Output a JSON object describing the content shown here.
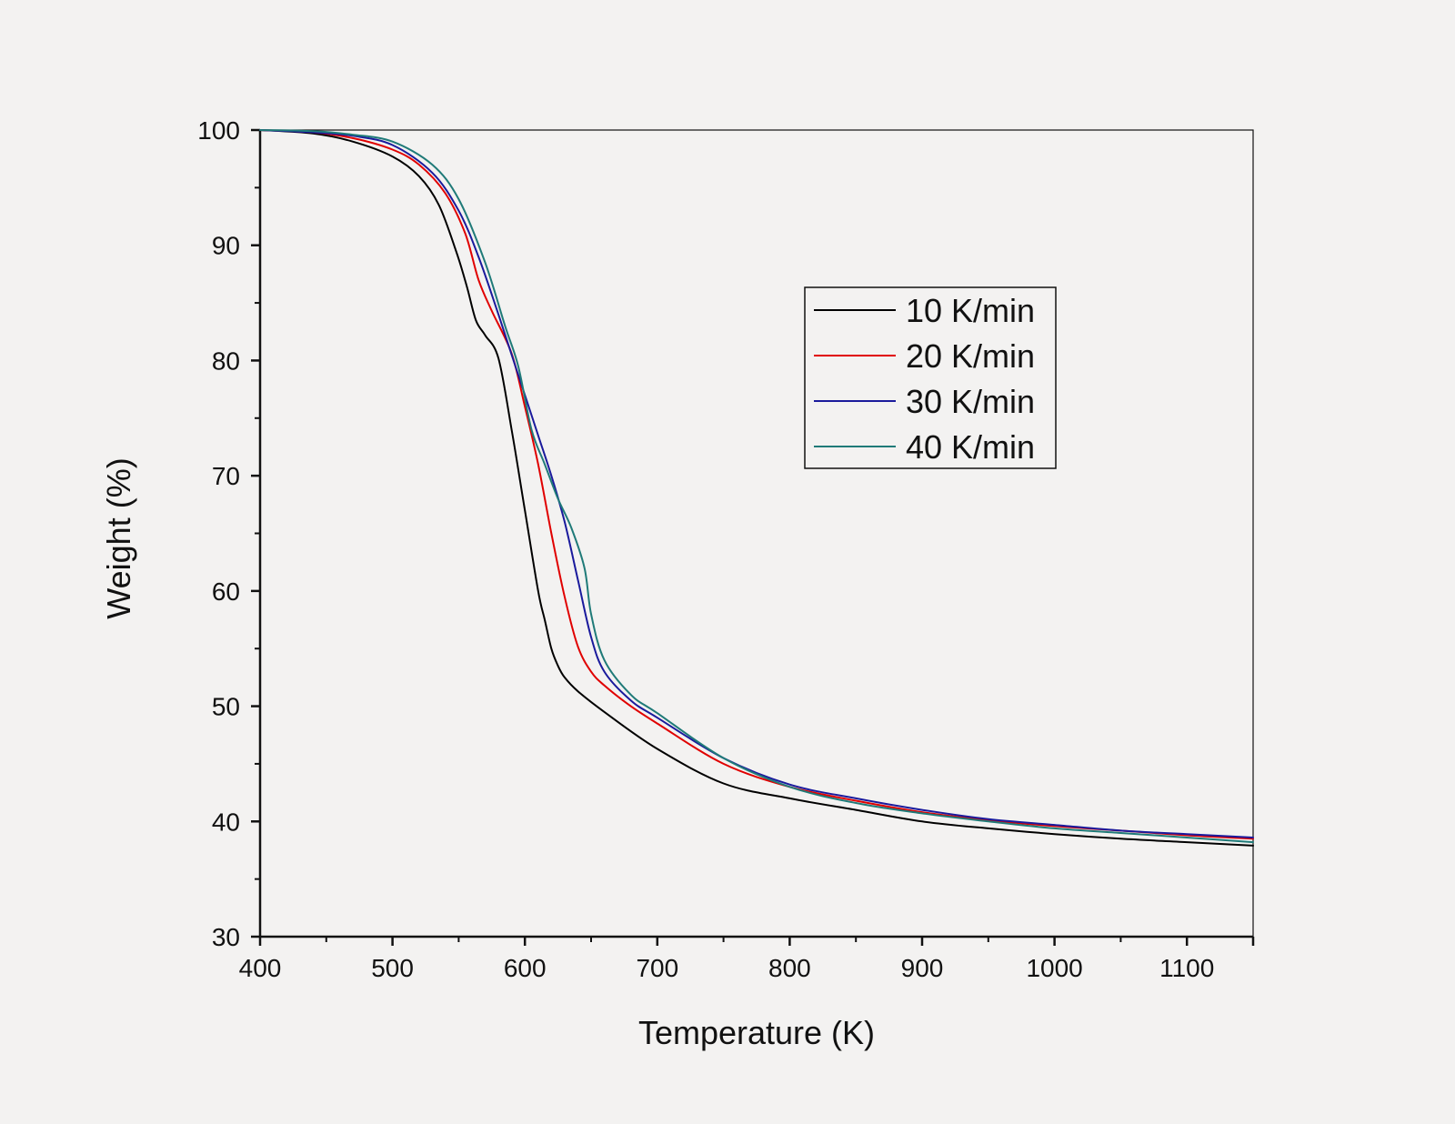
{
  "chart_data": {
    "type": "line",
    "title": "",
    "xlabel": "Temperature (K)",
    "ylabel": "Weight (%)",
    "xlim": [
      400,
      1150
    ],
    "ylim": [
      30,
      100
    ],
    "x_ticks": [
      400,
      500,
      600,
      700,
      800,
      900,
      1000,
      1100
    ],
    "x_tick_labels": [
      "400",
      "500",
      "600",
      "700",
      "800",
      "900",
      "1000",
      "1100"
    ],
    "y_ticks": [
      30,
      40,
      50,
      60,
      70,
      80,
      90,
      100
    ],
    "y_tick_labels": [
      "30",
      "40",
      "50",
      "60",
      "70",
      "80",
      "90",
      "100"
    ],
    "grid": false,
    "legend_position": "upper-right-inside",
    "series": [
      {
        "name": "10 K/min",
        "color": "#000000",
        "x": [
          400,
          440,
          470,
          500,
          520,
          535,
          548,
          556,
          563,
          570,
          580,
          590,
          600,
          610,
          615,
          620,
          625,
          630,
          640,
          660,
          700,
          750,
          800,
          850,
          900,
          950,
          1000,
          1050,
          1100,
          1150
        ],
        "y": [
          100,
          99.7,
          99,
          97.7,
          96,
          93.5,
          89.5,
          86.5,
          83.5,
          82.2,
          80.2,
          74,
          67,
          60,
          57.5,
          55,
          53.5,
          52.5,
          51.3,
          49.5,
          46.3,
          43.3,
          42,
          41,
          40,
          39.4,
          38.9,
          38.5,
          38.2,
          37.9
        ]
      },
      {
        "name": "20 K/min",
        "color": "#e00000",
        "x": [
          400,
          440,
          470,
          500,
          520,
          540,
          555,
          565,
          575,
          590,
          600,
          610,
          620,
          630,
          640,
          650,
          660,
          680,
          700,
          750,
          800,
          850,
          900,
          950,
          1000,
          1050,
          1100,
          1150
        ],
        "y": [
          100,
          99.8,
          99.3,
          98.3,
          97,
          94.5,
          91,
          87,
          84.3,
          80.6,
          76,
          71,
          65,
          59.5,
          55.2,
          53,
          51.8,
          50,
          48.5,
          45,
          43,
          41.8,
          40.8,
          40.1,
          39.6,
          39.2,
          38.8,
          38.5
        ]
      },
      {
        "name": "30 K/min",
        "color": "#1a1a9c",
        "x": [
          400,
          440,
          470,
          500,
          530,
          550,
          565,
          580,
          590,
          600,
          610,
          620,
          630,
          640,
          650,
          660,
          680,
          700,
          750,
          800,
          850,
          900,
          950,
          1000,
          1050,
          1100,
          1150
        ],
        "y": [
          100,
          99.8,
          99.5,
          98.7,
          96.3,
          93,
          89,
          84,
          80.5,
          77,
          73.5,
          70,
          66,
          61,
          56,
          53,
          50.5,
          49,
          45.5,
          43.2,
          42,
          41,
          40.2,
          39.7,
          39.2,
          38.9,
          38.6
        ]
      },
      {
        "name": "40 K/min",
        "color": "#1f7a78",
        "x": [
          400,
          440,
          470,
          500,
          530,
          550,
          570,
          585,
          595,
          605,
          615,
          625,
          635,
          645,
          650,
          660,
          680,
          700,
          750,
          800,
          850,
          900,
          950,
          1000,
          1050,
          1100,
          1150
        ],
        "y": [
          100,
          99.9,
          99.6,
          99,
          97,
          94,
          88.5,
          83,
          79.5,
          74,
          71,
          68,
          65.5,
          62,
          58,
          54,
          51,
          49.4,
          45.5,
          43,
          41.6,
          40.7,
          40,
          39.4,
          39,
          38.6,
          38.2
        ]
      }
    ]
  }
}
